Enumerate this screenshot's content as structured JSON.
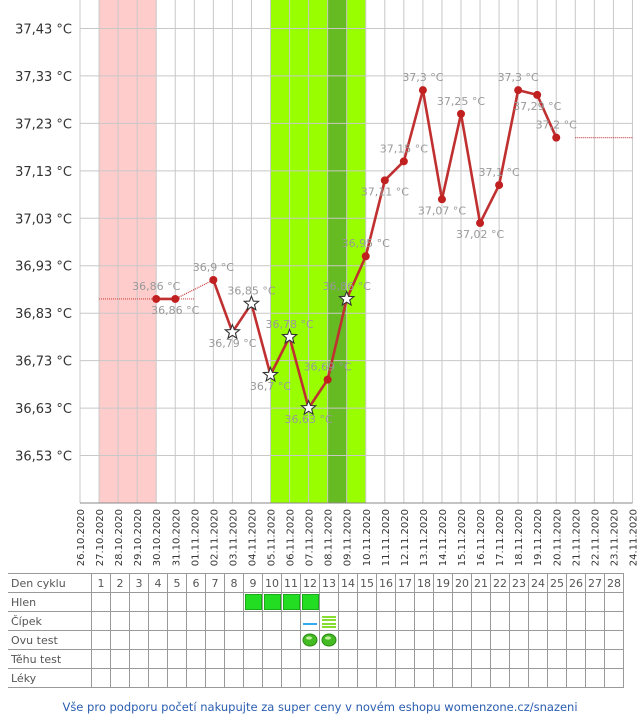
{
  "chart_data": {
    "type": "line",
    "x_dates": [
      "26.10.2020",
      "27.10.2020",
      "28.10.2020",
      "29.10.2020",
      "30.10.2020",
      "31.10.2020",
      "01.11.2020",
      "02.11.2020",
      "03.11.2020",
      "04.11.2020",
      "05.11.2020",
      "06.11.2020",
      "07.11.2020",
      "08.11.2020",
      "09.11.2020",
      "10.11.2020",
      "11.11.2020",
      "12.11.2020",
      "13.11.2020",
      "14.11.2020",
      "15.11.2020",
      "16.11.2020",
      "17.11.2020",
      "18.11.2020",
      "19.11.2020",
      "20.11.2020",
      "21.11.2020",
      "22.11.2020",
      "23.11.2020",
      "24.11.2020"
    ],
    "y_ticks": [
      "37,43 °C",
      "37,33 °C",
      "37,23 °C",
      "37,13 °C",
      "37,03 °C",
      "36,93 °C",
      "36,83 °C",
      "36,73 °C",
      "36,63 °C",
      "36,53 °C"
    ],
    "y_tick_values": [
      37.43,
      37.33,
      37.23,
      37.13,
      37.03,
      36.93,
      36.83,
      36.73,
      36.63,
      36.53
    ],
    "ylim": [
      36.43,
      37.49
    ],
    "grid": true,
    "menstruation_band": [
      "27.10.2020",
      "29.10.2020"
    ],
    "fertile_band": [
      "05.11.2020",
      "09.11.2020"
    ],
    "peak_band": [
      "08.11.2020",
      "08.11.2020"
    ],
    "baseline_left": {
      "from": "27.10.2020",
      "to": "01.11.2020",
      "value": 36.86
    },
    "baseline_right": {
      "from": "21.11.2020",
      "to": "24.11.2020",
      "value": 37.2
    },
    "series": [
      {
        "points": [
          {
            "date": "30.10.2020",
            "value": 36.86,
            "label": "36,86 °C",
            "label_pos": "above",
            "marker": "dot"
          },
          {
            "date": "31.10.2020",
            "value": 36.86,
            "label": "36,86 °C",
            "label_pos": "below",
            "marker": "dot"
          },
          {
            "date": "02.11.2020",
            "value": 36.9,
            "label": "36,9 °C",
            "label_pos": "above",
            "marker": "dot"
          },
          {
            "date": "03.11.2020",
            "value": 36.79,
            "label": "36,79 °C",
            "label_pos": "below",
            "marker": "star"
          },
          {
            "date": "04.11.2020",
            "value": 36.85,
            "label": "36,85 °C",
            "label_pos": "above",
            "marker": "star"
          },
          {
            "date": "05.11.2020",
            "value": 36.7,
            "label": "36,7 °C",
            "label_pos": "below",
            "marker": "star"
          },
          {
            "date": "06.11.2020",
            "value": 36.78,
            "label": "36,78 °C",
            "label_pos": "above",
            "marker": "star"
          },
          {
            "date": "07.11.2020",
            "value": 36.63,
            "label": "36,63 °C",
            "label_pos": "below",
            "marker": "star"
          },
          {
            "date": "08.11.2020",
            "value": 36.69,
            "label": "36,69 °C",
            "label_pos": "above",
            "marker": "dot"
          },
          {
            "date": "09.11.2020",
            "value": 36.86,
            "label": "36,86 °C",
            "label_pos": "above",
            "marker": "star"
          },
          {
            "date": "10.11.2020",
            "value": 36.95,
            "label": "36,95 °C",
            "label_pos": "above",
            "marker": "dot"
          },
          {
            "date": "11.11.2020",
            "value": 37.11,
            "label": "37,11 °C",
            "label_pos": "below",
            "marker": "dot"
          },
          {
            "date": "12.11.2020",
            "value": 37.15,
            "label": "37,15 °C",
            "label_pos": "above",
            "marker": "dot"
          },
          {
            "date": "13.11.2020",
            "value": 37.3,
            "label": "37,3 °C",
            "label_pos": "above",
            "marker": "dot"
          },
          {
            "date": "14.11.2020",
            "value": 37.07,
            "label": "37,07 °C",
            "label_pos": "below",
            "marker": "dot"
          },
          {
            "date": "15.11.2020",
            "value": 37.25,
            "label": "37,25 °C",
            "label_pos": "above",
            "marker": "dot"
          },
          {
            "date": "16.11.2020",
            "value": 37.02,
            "label": "37,02 °C",
            "label_pos": "below",
            "marker": "dot"
          },
          {
            "date": "17.11.2020",
            "value": 37.1,
            "label": "37,1 °C",
            "label_pos": "above",
            "marker": "dot"
          },
          {
            "date": "18.11.2020",
            "value": 37.3,
            "label": "37,3 °C",
            "label_pos": "above",
            "marker": "dot"
          },
          {
            "date": "19.11.2020",
            "value": 37.29,
            "label": "37,29 °C",
            "label_pos": "below",
            "marker": "dot"
          },
          {
            "date": "20.11.2020",
            "value": 37.2,
            "label": "37,2 °C",
            "label_pos": "above",
            "marker": "dot"
          }
        ]
      }
    ]
  },
  "table": {
    "header_label": "Den cyklu",
    "days": [
      "1",
      "2",
      "3",
      "4",
      "5",
      "6",
      "7",
      "8",
      "9",
      "10",
      "11",
      "12",
      "13",
      "14",
      "15",
      "16",
      "17",
      "18",
      "19",
      "20",
      "21",
      "22",
      "23",
      "24",
      "25",
      "26",
      "27",
      "28"
    ],
    "rows": [
      {
        "label": "Hlen",
        "kind": "mucus",
        "marked_days": [
          9,
          10,
          11,
          12
        ]
      },
      {
        "label": "Čípek",
        "kind": "cervix",
        "marked_days": [
          12,
          13
        ]
      },
      {
        "label": "Ovu test",
        "kind": "ovu",
        "marked_days": [
          12,
          13
        ]
      },
      {
        "label": "Těhu test",
        "kind": "none",
        "marked_days": []
      },
      {
        "label": "Léky",
        "kind": "none",
        "marked_days": []
      }
    ]
  },
  "colors": {
    "line": "#c03030",
    "marker": "#c02020",
    "menstruation": "#ffcccc",
    "fertile": "#99ff00",
    "peak": "#66bb22",
    "grid": "#c8c8c8",
    "label": "#999999",
    "mucus": "#22dd22",
    "ovu": "#44bb22",
    "footer_link": "#2a5db0"
  },
  "footer": {
    "text": "Vše pro podporu početí nakupujte za super ceny v novém eshopu womenzone.cz/snazeni"
  }
}
